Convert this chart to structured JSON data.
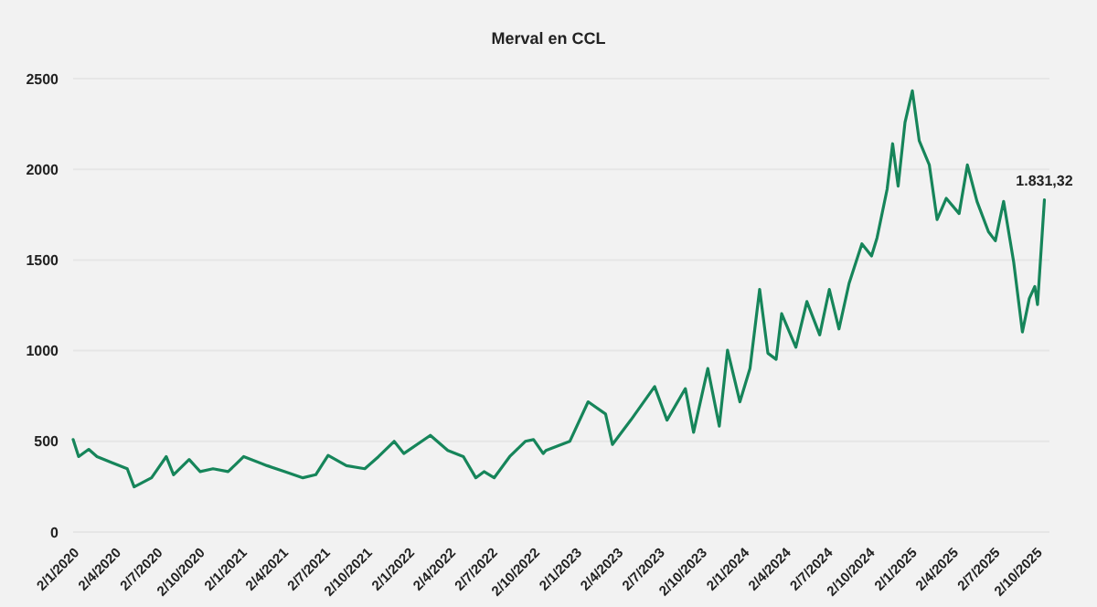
{
  "chart_data": {
    "type": "line",
    "title": "Merval en CCL",
    "x": [
      "2020-01-02",
      "2020-01-14",
      "2020-02-05",
      "2020-02-23",
      "2020-03-26",
      "2020-04-29",
      "2020-05-14",
      "2020-06-21",
      "2020-07-23",
      "2020-08-08",
      "2020-09-11",
      "2020-10-05",
      "2020-11-02",
      "2020-12-05",
      "2021-01-08",
      "2021-02-28",
      "2021-04-08",
      "2021-05-17",
      "2021-06-14",
      "2021-07-11",
      "2021-08-20",
      "2021-09-29",
      "2021-10-29",
      "2021-12-02",
      "2021-12-23",
      "2022-02-19",
      "2022-03-29",
      "2022-05-02",
      "2022-05-29",
      "2022-06-16",
      "2022-07-08",
      "2022-08-11",
      "2022-09-14",
      "2022-10-02",
      "2022-10-23",
      "2022-10-29",
      "2022-12-20",
      "2023-01-29",
      "2023-03-08",
      "2023-03-23",
      "2023-05-02",
      "2023-06-23",
      "2023-07-20",
      "2023-08-29",
      "2023-09-16",
      "2023-10-17",
      "2023-11-11",
      "2023-11-29",
      "2023-12-26",
      "2024-01-17",
      "2024-02-07",
      "2024-02-25",
      "2024-03-14",
      "2024-03-26",
      "2024-04-26",
      "2024-05-20",
      "2024-06-17",
      "2024-07-08",
      "2024-07-29",
      "2024-08-20",
      "2024-09-17",
      "2024-10-08",
      "2024-10-20",
      "2024-11-11",
      "2024-11-23",
      "2024-12-05",
      "2024-12-20",
      "2025-01-05",
      "2025-01-20",
      "2025-02-11",
      "2025-02-28",
      "2025-03-20",
      "2025-04-17",
      "2025-05-05",
      "2025-05-26",
      "2025-06-20",
      "2025-07-05",
      "2025-07-23",
      "2025-08-14",
      "2025-09-02",
      "2025-09-17",
      "2025-09-29",
      "2025-10-05",
      "2025-10-20"
    ],
    "series": [
      {
        "color": "#16855a",
        "values": [
          510,
          416,
          456,
          416,
          383,
          349,
          249,
          299,
          416,
          316,
          400,
          333,
          349,
          333,
          416,
          366,
          333,
          299,
          316,
          423,
          366,
          349,
          416,
          500,
          433,
          533,
          450,
          416,
          299,
          333,
          299,
          416,
          500,
          510,
          433,
          450,
          500,
          718,
          651,
          483,
          617,
          802,
          617,
          791,
          550,
          902,
          584,
          1003,
          718,
          902,
          1338,
          986,
          952,
          1204,
          1019,
          1271,
          1087,
          1338,
          1120,
          1371,
          1589,
          1522,
          1622,
          1890,
          2141,
          1907,
          2259,
          2433,
          2158,
          2024,
          1723,
          1840,
          1756,
          2024,
          1823,
          1656,
          1606,
          1823,
          1488,
          1103,
          1287,
          1354,
          1254,
          1831.32
        ]
      }
    ],
    "xlim": [
      "2020-01-02",
      "2025-10-31"
    ],
    "xticks": [
      {
        "value": "2020-01-02",
        "label": "2/1/2020"
      },
      {
        "value": "2020-04-02",
        "label": "2/4/2020"
      },
      {
        "value": "2020-07-02",
        "label": "2/7/2020"
      },
      {
        "value": "2020-10-02",
        "label": "2/10/2020"
      },
      {
        "value": "2021-01-02",
        "label": "2/1/2021"
      },
      {
        "value": "2021-04-02",
        "label": "2/4/2021"
      },
      {
        "value": "2021-07-02",
        "label": "2/7/2021"
      },
      {
        "value": "2021-10-02",
        "label": "2/10/2021"
      },
      {
        "value": "2022-01-02",
        "label": "2/1/2022"
      },
      {
        "value": "2022-04-02",
        "label": "2/4/2022"
      },
      {
        "value": "2022-07-02",
        "label": "2/7/2022"
      },
      {
        "value": "2022-10-02",
        "label": "2/10/2022"
      },
      {
        "value": "2023-01-02",
        "label": "2/1/2023"
      },
      {
        "value": "2023-04-02",
        "label": "2/4/2023"
      },
      {
        "value": "2023-07-02",
        "label": "2/7/2023"
      },
      {
        "value": "2023-10-02",
        "label": "2/10/2023"
      },
      {
        "value": "2024-01-02",
        "label": "2/1/2024"
      },
      {
        "value": "2024-04-02",
        "label": "2/4/2024"
      },
      {
        "value": "2024-07-02",
        "label": "2/7/2024"
      },
      {
        "value": "2024-10-02",
        "label": "2/10/2024"
      },
      {
        "value": "2025-01-02",
        "label": "2/1/2025"
      },
      {
        "value": "2025-04-02",
        "label": "2/4/2025"
      },
      {
        "value": "2025-07-02",
        "label": "2/7/2025"
      },
      {
        "value": "2025-10-02",
        "label": "2/10/2025"
      }
    ],
    "ylim": [
      0,
      2500
    ],
    "yticks": [
      0,
      500,
      1000,
      1500,
      2000,
      2500
    ],
    "grid": "y",
    "annotations": [
      {
        "text": "1.831,32",
        "x": "2025-10-20",
        "y": 1831.32
      }
    ]
  }
}
